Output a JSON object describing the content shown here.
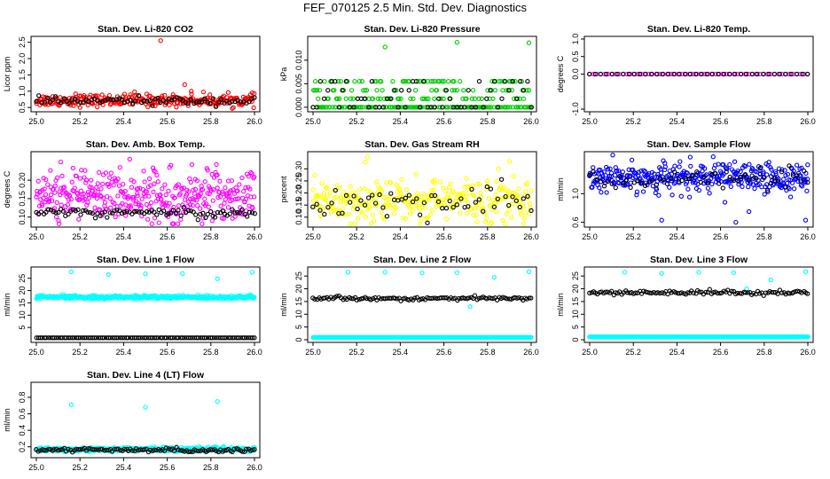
{
  "title": "FEF_070125  2.5 Min. Std. Dev. Diagnostics",
  "colors": {
    "co2": "#ff0000",
    "pressure": "#00cc00",
    "temp": "#ff00ff",
    "box_temp": "#ff00ff",
    "rh": "#ffff00",
    "sample_flow": "#0000ff",
    "line_flow": "#00ffff",
    "reference": "#000000"
  },
  "chart_data": [
    {
      "type": "scatter",
      "title": "Stan. Dev. Li-820 CO2",
      "ylabel": "Licor ppm",
      "xlim": [
        25.0,
        26.0
      ],
      "ylim": [
        0.45,
        2.6
      ],
      "xticks": [
        "25.0",
        "25.2",
        "25.4",
        "25.6",
        "25.8",
        "26.0"
      ],
      "yticks": [
        "0.5",
        "1.0",
        "1.5",
        "2.0",
        "2.5"
      ],
      "series": [
        {
          "name": "primary",
          "color": "#ff0000",
          "center": 0.72,
          "spread": 0.09,
          "count": 260,
          "outliers": [
            [
              25.57,
              2.55
            ],
            [
              25.68,
              1.2
            ],
            [
              25.71,
              1.0
            ],
            [
              25.45,
              0.98
            ],
            [
              25.99,
              0.95
            ],
            [
              25.18,
              0.92
            ]
          ]
        },
        {
          "name": "reference",
          "color": "#000000",
          "center": 0.7,
          "spread": 0.06,
          "count": 80
        }
      ]
    },
    {
      "type": "scatter",
      "title": "Stan. Dev. Li-820 Pressure",
      "ylabel": "kPa",
      "xlim": [
        25.0,
        26.0
      ],
      "ylim": [
        -0.0004,
        0.0145
      ],
      "xticks": [
        "25.0",
        "25.2",
        "25.4",
        "25.6",
        "25.8",
        "26.0"
      ],
      "yticks": [
        "0.000",
        "0.005",
        "0.010"
      ],
      "series": [
        {
          "name": "primary",
          "color": "#00cc00",
          "levels": [
            0.0,
            0.0018,
            0.0036,
            0.0055
          ],
          "count": 260,
          "outliers": [
            [
              25.33,
              0.0128
            ],
            [
              25.66,
              0.0138
            ],
            [
              25.99,
              0.0137
            ]
          ]
        },
        {
          "name": "reference",
          "color": "#000000",
          "levels": [
            0.0,
            0.0018,
            0.0036,
            0.0055
          ],
          "count": 60
        }
      ]
    },
    {
      "type": "scatter",
      "title": "Stan. Dev. Li-820 Temp.",
      "ylabel": "degrees C",
      "xlim": [
        25.0,
        26.0
      ],
      "ylim": [
        -1.0,
        1.0
      ],
      "xticks": [
        "25.0",
        "25.2",
        "25.4",
        "25.6",
        "25.8",
        "26.0"
      ],
      "yticks": [
        "-1.0",
        "0.0",
        "0.5",
        "1.0"
      ],
      "series": [
        {
          "name": "primary",
          "color": "#ff00ff",
          "center": 0.0,
          "spread": 0.0,
          "count": 60
        },
        {
          "name": "reference",
          "color": "#000000",
          "center": 0.0,
          "spread": 0.0,
          "count": 40
        }
      ]
    },
    {
      "type": "scatter",
      "title": "Stan. Dev. Amb. Box Temp.",
      "ylabel": "degrees C",
      "xlim": [
        25.0,
        26.0
      ],
      "ylim": [
        0.08,
        0.27
      ],
      "xticks": [
        "25.0",
        "25.2",
        "25.4",
        "25.6",
        "25.8",
        "26.0"
      ],
      "yticks": [
        "0.10",
        "0.15",
        "0.20"
      ],
      "series": [
        {
          "name": "primary",
          "color": "#ff00ff",
          "center": 0.16,
          "spread": 0.035,
          "count": 380
        },
        {
          "name": "reference",
          "color": "#000000",
          "center": 0.112,
          "spread": 0.006,
          "count": 90
        }
      ]
    },
    {
      "type": "scatter",
      "title": "Stan. Dev. Gas Stream RH",
      "ylabel": "percent",
      "xlim": [
        25.0,
        26.0
      ],
      "ylim": [
        0.07,
        0.36
      ],
      "xticks": [
        "25.0",
        "25.2",
        "25.4",
        "25.6",
        "25.8",
        "26.0"
      ],
      "yticks": [
        "0.10",
        "0.15",
        "0.20",
        "0.25",
        "0.30"
      ],
      "series": [
        {
          "name": "primary",
          "color": "#ffff00",
          "center": 0.17,
          "spread": 0.045,
          "count": 320,
          "outliers": [
            [
              25.25,
              0.35
            ],
            [
              25.9,
              0.33
            ],
            [
              25.85,
              0.3
            ]
          ]
        },
        {
          "name": "reference",
          "color": "#000000",
          "center": 0.16,
          "spread": 0.035,
          "count": 60
        }
      ]
    },
    {
      "type": "scatter",
      "title": "Stan. Dev. Sample Flow",
      "ylabel": "ml/min",
      "xlim": [
        25.0,
        26.0
      ],
      "ylim": [
        0.57,
        1.55
      ],
      "xticks": [
        "25.0",
        "25.2",
        "25.4",
        "25.6",
        "25.8",
        "26.0"
      ],
      "yticks": [
        "0.6",
        "1.0"
      ],
      "series": [
        {
          "name": "primary",
          "color": "#0000ff",
          "center": 1.22,
          "spread": 0.1,
          "count": 360,
          "outliers": [
            [
              25.33,
              0.63
            ],
            [
              25.67,
              0.6
            ],
            [
              25.99,
              0.63
            ],
            [
              25.73,
              0.75
            ],
            [
              25.62,
              0.88
            ]
          ]
        },
        {
          "name": "reference",
          "color": "#000000",
          "center": 1.2,
          "spread": 0.07,
          "count": 60
        }
      ]
    },
    {
      "type": "scatter",
      "title": "Stan. Dev. Line 1 Flow",
      "ylabel": "ml/min",
      "xlim": [
        25.0,
        26.0
      ],
      "ylim": [
        0.0,
        28.5
      ],
      "xticks": [
        "25.0",
        "25.2",
        "25.4",
        "25.6",
        "25.8",
        "26.0"
      ],
      "yticks": [
        "5",
        "10",
        "15",
        "20",
        "25"
      ],
      "series": [
        {
          "name": "primary",
          "color": "#00ffff",
          "center": 17.3,
          "spread": 0.35,
          "count": 380,
          "outliers": [
            [
              25.16,
              27.6
            ],
            [
              25.33,
              26.5
            ],
            [
              25.5,
              26.8
            ],
            [
              25.67,
              26.9
            ],
            [
              25.83,
              24.8
            ],
            [
              25.99,
              27.4
            ]
          ]
        },
        {
          "name": "reference",
          "color": "#000000",
          "center": 0.8,
          "spread": 0.0,
          "count": 110
        }
      ]
    },
    {
      "type": "scatter",
      "title": "Stan. Dev. Line 2 Flow",
      "ylabel": "ml/min",
      "xlim": [
        25.0,
        26.0
      ],
      "ylim": [
        0.0,
        27.5
      ],
      "xticks": [
        "25.0",
        "25.2",
        "25.4",
        "25.6",
        "25.8",
        "26.0"
      ],
      "yticks": [
        "0",
        "5",
        "10",
        "15",
        "20",
        "25"
      ],
      "series": [
        {
          "name": "primary",
          "color": "#00ffff",
          "center": 0.9,
          "spread": 0.0,
          "count": 380,
          "outliers": [
            [
              25.16,
              26.5
            ],
            [
              25.33,
              26.5
            ],
            [
              25.5,
              26.2
            ],
            [
              25.66,
              26.3
            ],
            [
              25.83,
              24.5
            ],
            [
              25.99,
              26.7
            ],
            [
              25.72,
              13.0
            ]
          ]
        },
        {
          "name": "reference",
          "color": "#000000",
          "center": 16.2,
          "spread": 0.35,
          "count": 110
        }
      ]
    },
    {
      "type": "scatter",
      "title": "Stan. Dev. Line 3 Flow",
      "ylabel": "ml/min",
      "xlim": [
        25.0,
        26.0
      ],
      "ylim": [
        0.0,
        27.5
      ],
      "xticks": [
        "25.0",
        "25.2",
        "25.4",
        "25.6",
        "25.8",
        "26.0"
      ],
      "yticks": [
        "0",
        "5",
        "10",
        "15",
        "20",
        "25"
      ],
      "series": [
        {
          "name": "primary",
          "color": "#00ffff",
          "center": 1.1,
          "spread": 0.0,
          "count": 380,
          "outliers": [
            [
              25.16,
              26.5
            ],
            [
              25.33,
              26.0
            ],
            [
              25.5,
              26.5
            ],
            [
              25.66,
              26.3
            ],
            [
              25.83,
              23.5
            ],
            [
              25.99,
              26.7
            ],
            [
              25.72,
              20.0
            ]
          ]
        },
        {
          "name": "reference",
          "color": "#000000",
          "center": 18.5,
          "spread": 0.4,
          "count": 110
        }
      ]
    },
    {
      "type": "scatter",
      "title": "Stan. Dev. Line 4 (LT) Flow",
      "ylabel": "ml/min",
      "xlim": [
        25.0,
        26.0
      ],
      "ylim": [
        0.1,
        0.95
      ],
      "xticks": [
        "25.0",
        "25.2",
        "25.4",
        "25.6",
        "25.8",
        "26.0"
      ],
      "yticks": [
        "0.2",
        "0.4",
        "0.6",
        "0.8"
      ],
      "series": [
        {
          "name": "primary",
          "color": "#00ffff",
          "center": 0.17,
          "spread": 0.012,
          "count": 380,
          "outliers": [
            [
              25.16,
              0.71
            ],
            [
              25.5,
              0.68
            ],
            [
              25.83,
              0.75
            ]
          ]
        },
        {
          "name": "reference",
          "color": "#000000",
          "center": 0.16,
          "spread": 0.012,
          "count": 110
        }
      ]
    }
  ]
}
